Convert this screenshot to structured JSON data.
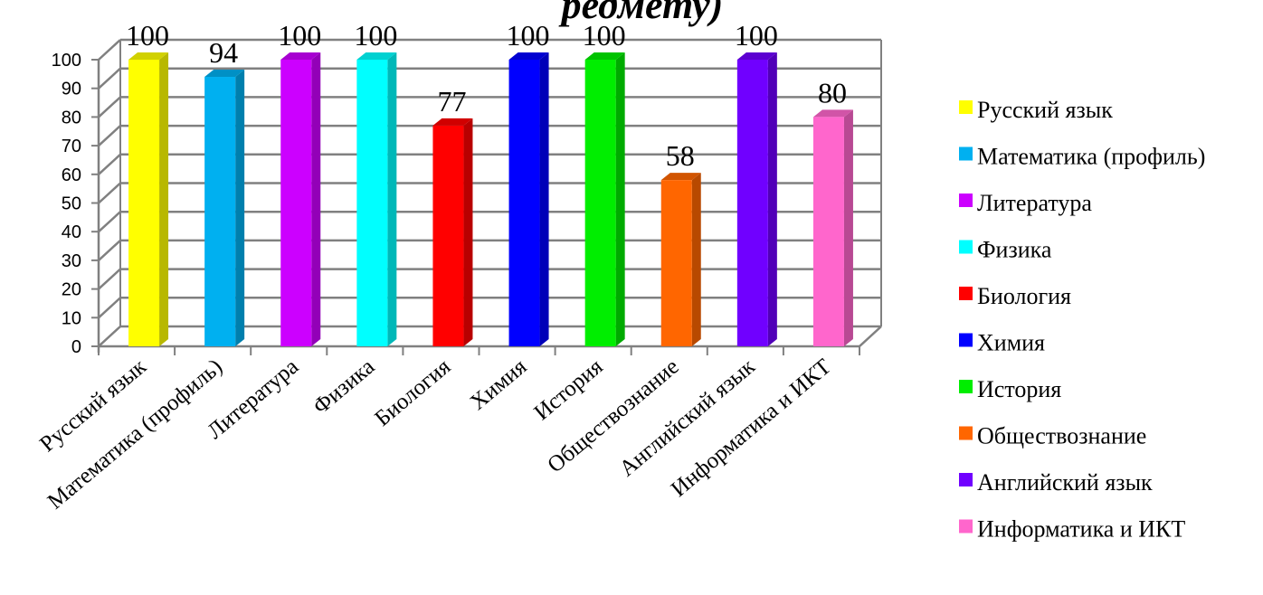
{
  "chart_data": {
    "type": "bar",
    "title_fragment": "редмету)",
    "categories": [
      "Русский язык",
      "Математика (профиль)",
      "Литература",
      "Физика",
      "Биология",
      "Химия",
      "История",
      "Обществознание",
      "Английский язык",
      "Информатика и ИКТ"
    ],
    "values": [
      100,
      94,
      100,
      100,
      77,
      100,
      100,
      58,
      100,
      80
    ],
    "colors": [
      "#ffff00",
      "#00b0f0",
      "#cc00ff",
      "#00ffff",
      "#ff0000",
      "#0000ff",
      "#00ee00",
      "#ff6600",
      "#7000ff",
      "#ff66cc"
    ],
    "ylim": [
      0,
      100
    ],
    "yticks": [
      0,
      10,
      20,
      30,
      40,
      50,
      60,
      70,
      80,
      90,
      100
    ],
    "grid": true,
    "legend": "right",
    "style": "3d-column"
  }
}
